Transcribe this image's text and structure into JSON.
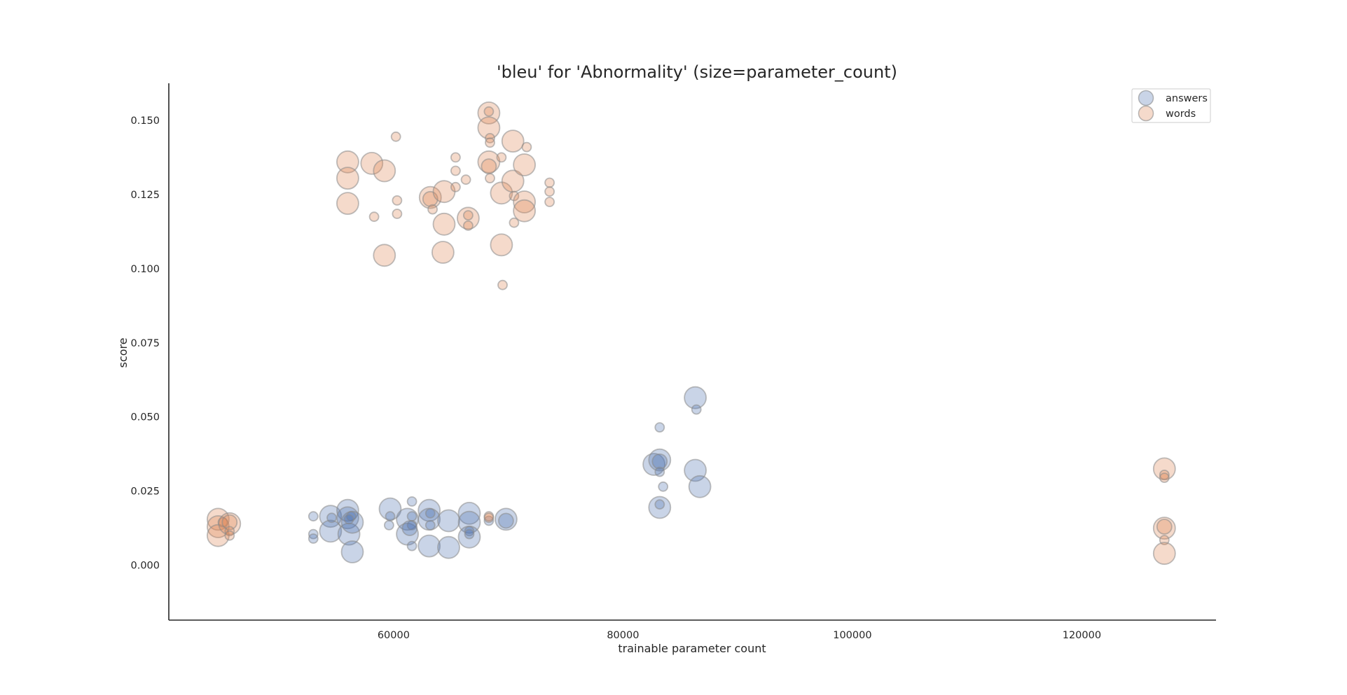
{
  "chart_data": {
    "type": "scatter",
    "title": "'bleu' for 'Abnormality' (size=parameter_count)",
    "xlabel": "trainable parameter count",
    "ylabel": "score",
    "xlim": [
      40400,
      131700
    ],
    "ylim": [
      -0.0185,
      0.1625
    ],
    "xticks": [
      60000,
      80000,
      100000,
      120000
    ],
    "yticks": [
      0.0,
      0.025,
      0.05,
      0.075,
      0.1,
      0.125,
      0.15
    ],
    "ytick_labels": [
      "0.000",
      "0.025",
      "0.050",
      "0.075",
      "0.100",
      "0.125",
      "0.150"
    ],
    "grid": false,
    "legend_position": "top-right",
    "marker_size": "parameter_count (small / medium / large)",
    "series": [
      {
        "name": "answers",
        "color": "#4c72b0",
        "points": [
          {
            "x": 53000,
            "y": 0.0165,
            "s": "s"
          },
          {
            "x": 53000,
            "y": 0.0105,
            "s": "s"
          },
          {
            "x": 53000,
            "y": 0.009,
            "s": "s"
          },
          {
            "x": 54500,
            "y": 0.0165,
            "s": "l"
          },
          {
            "x": 54500,
            "y": 0.0115,
            "s": "l"
          },
          {
            "x": 54600,
            "y": 0.016,
            "s": "s"
          },
          {
            "x": 56000,
            "y": 0.0185,
            "s": "l"
          },
          {
            "x": 56000,
            "y": 0.016,
            "s": "l"
          },
          {
            "x": 56100,
            "y": 0.0105,
            "s": "l"
          },
          {
            "x": 56400,
            "y": 0.0145,
            "s": "l"
          },
          {
            "x": 56400,
            "y": 0.0045,
            "s": "l"
          },
          {
            "x": 56300,
            "y": 0.0165,
            "s": "s"
          },
          {
            "x": 56100,
            "y": 0.0155,
            "s": "s"
          },
          {
            "x": 59700,
            "y": 0.019,
            "s": "l"
          },
          {
            "x": 59700,
            "y": 0.0165,
            "s": "s"
          },
          {
            "x": 59600,
            "y": 0.0135,
            "s": "s"
          },
          {
            "x": 61200,
            "y": 0.0155,
            "s": "l"
          },
          {
            "x": 61200,
            "y": 0.0105,
            "s": "l"
          },
          {
            "x": 61600,
            "y": 0.0215,
            "s": "s"
          },
          {
            "x": 61600,
            "y": 0.0165,
            "s": "s"
          },
          {
            "x": 61600,
            "y": 0.0135,
            "s": "s"
          },
          {
            "x": 61600,
            "y": 0.0065,
            "s": "s"
          },
          {
            "x": 61400,
            "y": 0.0125,
            "s": "m"
          },
          {
            "x": 63100,
            "y": 0.0185,
            "s": "l"
          },
          {
            "x": 63100,
            "y": 0.0155,
            "s": "l"
          },
          {
            "x": 63100,
            "y": 0.0065,
            "s": "l"
          },
          {
            "x": 63200,
            "y": 0.0175,
            "s": "s"
          },
          {
            "x": 63200,
            "y": 0.0135,
            "s": "s"
          },
          {
            "x": 64800,
            "y": 0.015,
            "s": "l"
          },
          {
            "x": 64800,
            "y": 0.006,
            "s": "l"
          },
          {
            "x": 66600,
            "y": 0.0175,
            "s": "l"
          },
          {
            "x": 66600,
            "y": 0.0145,
            "s": "l"
          },
          {
            "x": 66600,
            "y": 0.0095,
            "s": "l"
          },
          {
            "x": 66600,
            "y": 0.0115,
            "s": "s"
          },
          {
            "x": 66600,
            "y": 0.0105,
            "s": "s"
          },
          {
            "x": 68300,
            "y": 0.015,
            "s": "s"
          },
          {
            "x": 69800,
            "y": 0.0155,
            "s": "l"
          },
          {
            "x": 69800,
            "y": 0.015,
            "s": "m"
          },
          {
            "x": 82700,
            "y": 0.034,
            "s": "l"
          },
          {
            "x": 83200,
            "y": 0.0355,
            "s": "l"
          },
          {
            "x": 83200,
            "y": 0.035,
            "s": "m"
          },
          {
            "x": 83200,
            "y": 0.0465,
            "s": "s"
          },
          {
            "x": 83200,
            "y": 0.0315,
            "s": "s"
          },
          {
            "x": 83500,
            "y": 0.0265,
            "s": "s"
          },
          {
            "x": 83200,
            "y": 0.0195,
            "s": "l"
          },
          {
            "x": 83200,
            "y": 0.0205,
            "s": "s"
          },
          {
            "x": 86300,
            "y": 0.0565,
            "s": "l"
          },
          {
            "x": 86400,
            "y": 0.0525,
            "s": "s"
          },
          {
            "x": 86300,
            "y": 0.032,
            "s": "l"
          },
          {
            "x": 86700,
            "y": 0.0265,
            "s": "l"
          }
        ]
      },
      {
        "name": "words",
        "color": "#dd8452",
        "points": [
          {
            "x": 44700,
            "y": 0.0155,
            "s": "l"
          },
          {
            "x": 44700,
            "y": 0.013,
            "s": "l"
          },
          {
            "x": 44700,
            "y": 0.01,
            "s": "l"
          },
          {
            "x": 45100,
            "y": 0.0145,
            "s": "s"
          },
          {
            "x": 45700,
            "y": 0.014,
            "s": "l"
          },
          {
            "x": 45700,
            "y": 0.0145,
            "s": "m"
          },
          {
            "x": 45700,
            "y": 0.0115,
            "s": "s"
          },
          {
            "x": 45700,
            "y": 0.01,
            "s": "s"
          },
          {
            "x": 56000,
            "y": 0.136,
            "s": "l"
          },
          {
            "x": 56000,
            "y": 0.1305,
            "s": "l"
          },
          {
            "x": 56000,
            "y": 0.122,
            "s": "l"
          },
          {
            "x": 58100,
            "y": 0.1355,
            "s": "l"
          },
          {
            "x": 58300,
            "y": 0.1175,
            "s": "s"
          },
          {
            "x": 59200,
            "y": 0.133,
            "s": "l"
          },
          {
            "x": 59200,
            "y": 0.1045,
            "s": "l"
          },
          {
            "x": 60200,
            "y": 0.1445,
            "s": "s"
          },
          {
            "x": 60300,
            "y": 0.123,
            "s": "s"
          },
          {
            "x": 60300,
            "y": 0.1185,
            "s": "s"
          },
          {
            "x": 63200,
            "y": 0.124,
            "s": "l"
          },
          {
            "x": 63200,
            "y": 0.1235,
            "s": "m"
          },
          {
            "x": 63400,
            "y": 0.12,
            "s": "s"
          },
          {
            "x": 64400,
            "y": 0.126,
            "s": "l"
          },
          {
            "x": 64400,
            "y": 0.115,
            "s": "l"
          },
          {
            "x": 64300,
            "y": 0.1055,
            "s": "l"
          },
          {
            "x": 65400,
            "y": 0.1375,
            "s": "s"
          },
          {
            "x": 65400,
            "y": 0.133,
            "s": "s"
          },
          {
            "x": 65400,
            "y": 0.1275,
            "s": "s"
          },
          {
            "x": 66300,
            "y": 0.13,
            "s": "s"
          },
          {
            "x": 66500,
            "y": 0.117,
            "s": "l"
          },
          {
            "x": 66500,
            "y": 0.118,
            "s": "s"
          },
          {
            "x": 66500,
            "y": 0.1145,
            "s": "s"
          },
          {
            "x": 68300,
            "y": 0.1525,
            "s": "l"
          },
          {
            "x": 68300,
            "y": 0.153,
            "s": "s"
          },
          {
            "x": 68300,
            "y": 0.1475,
            "s": "l"
          },
          {
            "x": 68400,
            "y": 0.144,
            "s": "s"
          },
          {
            "x": 68400,
            "y": 0.1425,
            "s": "s"
          },
          {
            "x": 68300,
            "y": 0.136,
            "s": "l"
          },
          {
            "x": 68300,
            "y": 0.1345,
            "s": "m"
          },
          {
            "x": 68400,
            "y": 0.1305,
            "s": "s"
          },
          {
            "x": 69400,
            "y": 0.1375,
            "s": "s"
          },
          {
            "x": 69400,
            "y": 0.1255,
            "s": "l"
          },
          {
            "x": 69400,
            "y": 0.108,
            "s": "l"
          },
          {
            "x": 69500,
            "y": 0.0945,
            "s": "s"
          },
          {
            "x": 70400,
            "y": 0.143,
            "s": "l"
          },
          {
            "x": 70400,
            "y": 0.1295,
            "s": "l"
          },
          {
            "x": 70500,
            "y": 0.1245,
            "s": "s"
          },
          {
            "x": 70500,
            "y": 0.1155,
            "s": "s"
          },
          {
            "x": 71400,
            "y": 0.135,
            "s": "l"
          },
          {
            "x": 71400,
            "y": 0.1225,
            "s": "l"
          },
          {
            "x": 71400,
            "y": 0.1195,
            "s": "l"
          },
          {
            "x": 71600,
            "y": 0.141,
            "s": "s"
          },
          {
            "x": 73600,
            "y": 0.129,
            "s": "s"
          },
          {
            "x": 73600,
            "y": 0.126,
            "s": "s"
          },
          {
            "x": 73600,
            "y": 0.1225,
            "s": "s"
          },
          {
            "x": 68300,
            "y": 0.0165,
            "s": "s"
          },
          {
            "x": 68300,
            "y": 0.016,
            "s": "s"
          },
          {
            "x": 127200,
            "y": 0.0325,
            "s": "l"
          },
          {
            "x": 127200,
            "y": 0.0305,
            "s": "s"
          },
          {
            "x": 127200,
            "y": 0.0295,
            "s": "s"
          },
          {
            "x": 127200,
            "y": 0.0125,
            "s": "l"
          },
          {
            "x": 127200,
            "y": 0.013,
            "s": "m"
          },
          {
            "x": 127200,
            "y": 0.0085,
            "s": "s"
          },
          {
            "x": 127200,
            "y": 0.004,
            "s": "l"
          }
        ]
      }
    ]
  }
}
